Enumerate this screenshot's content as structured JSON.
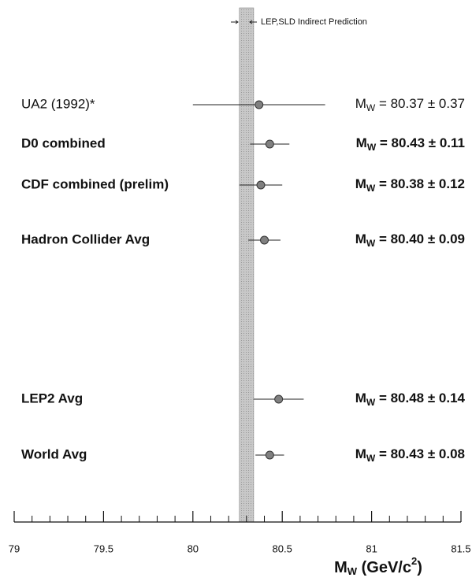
{
  "chart_data": {
    "type": "forest",
    "annotation": "LEP,SLD Indirect Prediction",
    "categories": [
      "UA2 (1992)*",
      "D0 combined",
      "CDF combined (prelim)",
      "Hadron Collider Avg",
      "LEP2 Avg",
      "World Avg"
    ],
    "values": [
      80.37,
      80.43,
      80.38,
      80.4,
      80.48,
      80.43
    ],
    "errors": [
      0.37,
      0.11,
      0.12,
      0.09,
      0.14,
      0.08
    ],
    "value_labels": [
      "80.37 ± 0.37",
      "80.43 ± 0.11",
      "80.38 ± 0.12",
      "80.40 ± 0.09",
      "80.48 ± 0.14",
      "80.43 ± 0.08"
    ],
    "value_label_prefix": [
      "M",
      "W",
      " = "
    ],
    "bold": [
      false,
      true,
      true,
      true,
      true,
      true
    ],
    "band": [
      80.26,
      80.34
    ],
    "band_color": "#c8c8c8",
    "point_color": "#808080",
    "xlim": [
      79,
      81.5
    ],
    "xticks": [
      79,
      79.5,
      80,
      80.5,
      81,
      81.5
    ],
    "xminor_ticks": [
      79.1,
      79.2,
      79.3,
      79.4,
      79.6,
      79.7,
      79.8,
      79.9,
      80.1,
      80.2,
      80.3,
      80.4,
      80.6,
      80.7,
      80.8,
      80.9,
      81.1,
      81.2,
      81.3,
      81.4
    ],
    "xlabel": [
      "M",
      "W",
      " (GeV/c",
      "2",
      ")"
    ]
  }
}
